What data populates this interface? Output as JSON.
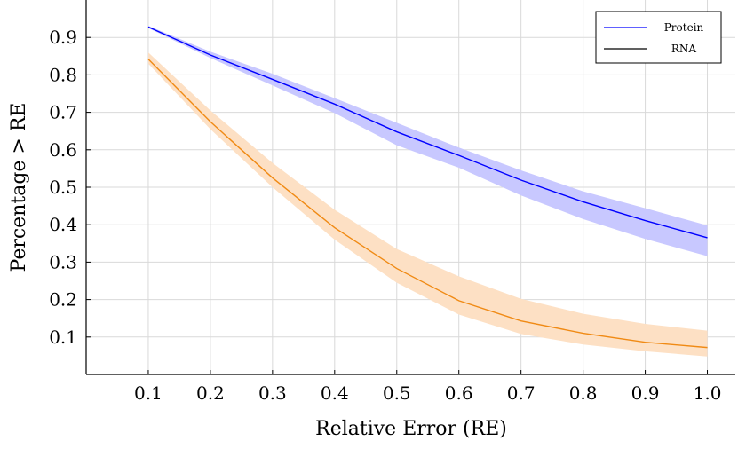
{
  "chart_data": {
    "type": "line",
    "title": "",
    "xlabel": "Relative Error (RE)",
    "ylabel": "Percentage > RE",
    "xlim": [
      0.0,
      1.045
    ],
    "ylim": [
      0.0,
      1.0
    ],
    "grid": true,
    "legend_position": "top-right",
    "x_ticks": [
      0.1,
      0.2,
      0.3,
      0.4,
      0.5,
      0.6,
      0.7,
      0.8,
      0.9,
      1.0
    ],
    "x_tick_labels": [
      "0.1",
      "0.2",
      "0.3",
      "0.4",
      "0.5",
      "0.6",
      "0.7",
      "0.8",
      "0.9",
      "1.0"
    ],
    "y_ticks": [
      0.1,
      0.2,
      0.3,
      0.4,
      0.5,
      0.6,
      0.7,
      0.8,
      0.9
    ],
    "y_tick_labels": [
      "0.1",
      "0.2",
      "0.3",
      "0.4",
      "0.5",
      "0.6",
      "0.7",
      "0.8",
      "0.9"
    ],
    "x": [
      0.1,
      0.2,
      0.3,
      0.4,
      0.5,
      0.6,
      0.7,
      0.8,
      0.9,
      1.0
    ],
    "series": [
      {
        "name": "Protein",
        "color": "#0000ff",
        "band_color": "#c8c8ff",
        "values": [
          0.928,
          0.853,
          0.788,
          0.722,
          0.648,
          0.585,
          0.519,
          0.461,
          0.411,
          0.365
        ],
        "lower": [
          0.925,
          0.845,
          0.772,
          0.698,
          0.612,
          0.552,
          0.478,
          0.415,
          0.362,
          0.316
        ],
        "upper": [
          0.931,
          0.862,
          0.803,
          0.738,
          0.672,
          0.606,
          0.545,
          0.489,
          0.444,
          0.398
        ]
      },
      {
        "name": "RNA",
        "color": "#f08a14",
        "band_color": "#fde0c4",
        "values": [
          0.842,
          0.675,
          0.525,
          0.392,
          0.283,
          0.197,
          0.143,
          0.11,
          0.086,
          0.072
        ],
        "lower": [
          0.83,
          0.655,
          0.5,
          0.36,
          0.245,
          0.16,
          0.108,
          0.08,
          0.062,
          0.048
        ],
        "upper": [
          0.86,
          0.705,
          0.565,
          0.44,
          0.335,
          0.262,
          0.202,
          0.162,
          0.135,
          0.117
        ]
      }
    ],
    "legend": [
      {
        "label": "Protein",
        "color": "#0000ff"
      },
      {
        "label": "RNA",
        "color": "#000000"
      }
    ]
  }
}
